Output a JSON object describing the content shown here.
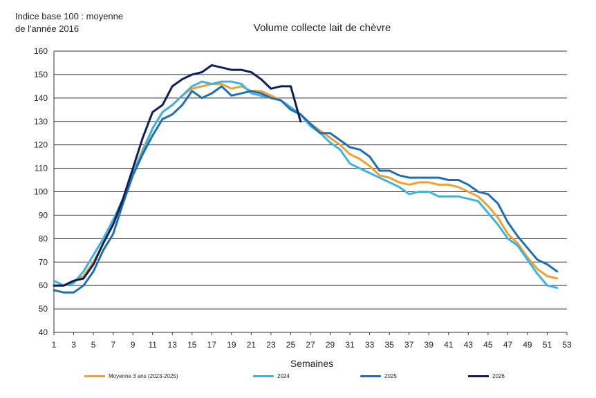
{
  "chart_data": {
    "type": "line",
    "title": "Volume collecte lait de chèvre",
    "ylabel": "Indice base 100 : moyenne\nde l'année 2016",
    "xlabel": "Semaines",
    "xlim": [
      1,
      53
    ],
    "ylim": [
      40,
      160
    ],
    "xticks": [
      1,
      3,
      5,
      7,
      9,
      11,
      13,
      15,
      17,
      19,
      21,
      23,
      25,
      27,
      29,
      31,
      33,
      35,
      37,
      39,
      41,
      43,
      45,
      47,
      49,
      51,
      53
    ],
    "yticks": [
      40,
      50,
      60,
      70,
      80,
      90,
      100,
      110,
      120,
      130,
      140,
      150,
      160
    ],
    "grid": "horizontal",
    "legend_position": "bottom",
    "series": [
      {
        "name": "Moyenne 3 ans (2023-2025)",
        "color": "#f0a030",
        "x": [
          1,
          2,
          3,
          4,
          5,
          6,
          7,
          8,
          9,
          10,
          11,
          12,
          13,
          14,
          15,
          16,
          17,
          18,
          19,
          20,
          21,
          22,
          23,
          24,
          25,
          26,
          27,
          28,
          29,
          30,
          31,
          32,
          33,
          34,
          35,
          36,
          37,
          38,
          39,
          40,
          41,
          42,
          43,
          44,
          45,
          46,
          47,
          48,
          49,
          50,
          51,
          52
        ],
        "values": [
          60,
          60,
          62,
          64,
          70,
          78,
          86,
          96,
          108,
          118,
          127,
          134,
          137,
          141,
          144,
          145,
          146,
          146,
          144,
          145,
          143,
          143,
          141,
          139,
          136,
          133,
          129,
          126,
          123,
          120,
          116,
          114,
          111,
          107,
          106,
          104,
          103,
          104,
          104,
          103,
          103,
          102,
          100,
          98,
          94,
          89,
          82,
          78,
          72,
          67,
          64,
          63
        ]
      },
      {
        "name": "2024",
        "color": "#3bb4e2",
        "x": [
          1,
          2,
          3,
          4,
          5,
          6,
          7,
          8,
          9,
          10,
          11,
          12,
          13,
          14,
          15,
          16,
          17,
          18,
          19,
          20,
          21,
          22,
          23,
          24,
          25,
          26,
          27,
          28,
          29,
          30,
          31,
          32,
          33,
          34,
          35,
          36,
          37,
          38,
          39,
          40,
          41,
          42,
          43,
          44,
          45,
          46,
          47,
          48,
          49,
          50,
          51,
          52
        ],
        "values": [
          62,
          60,
          61,
          66,
          73,
          80,
          88,
          97,
          108,
          117,
          127,
          134,
          137,
          141,
          145,
          147,
          146,
          147,
          147,
          146,
          142,
          141,
          140,
          139,
          136,
          133,
          128,
          125,
          121,
          118,
          112,
          110,
          108,
          106,
          104,
          102,
          99,
          100,
          100,
          98,
          98,
          98,
          97,
          96,
          91,
          86,
          80,
          77,
          71,
          65,
          60,
          59
        ]
      },
      {
        "name": "2025",
        "color": "#1f6fb0",
        "x": [
          1,
          2,
          3,
          4,
          5,
          6,
          7,
          8,
          9,
          10,
          11,
          12,
          13,
          14,
          15,
          16,
          17,
          18,
          19,
          20,
          21,
          22,
          23,
          24,
          25,
          26,
          27,
          28,
          29,
          30,
          31,
          32,
          33,
          34,
          35,
          36,
          37,
          38,
          39,
          40,
          41,
          42,
          43,
          44,
          45,
          46,
          47,
          48,
          49,
          50,
          51,
          52
        ],
        "values": [
          58,
          57,
          57,
          60,
          66,
          75,
          82,
          95,
          107,
          116,
          124,
          131,
          133,
          137,
          143,
          140,
          142,
          145,
          141,
          142,
          143,
          142,
          140,
          139,
          135,
          133,
          129,
          125,
          125,
          122,
          119,
          118,
          115,
          109,
          109,
          107,
          106,
          106,
          106,
          106,
          105,
          105,
          103,
          100,
          99,
          95,
          87,
          81,
          76,
          71,
          69,
          66
        ]
      },
      {
        "name": "2026",
        "color": "#0d1e5a",
        "x": [
          1,
          2,
          3,
          4,
          5,
          6,
          7,
          8,
          9,
          10,
          11,
          12,
          13,
          14,
          15,
          16,
          17,
          18,
          19,
          20,
          21,
          22,
          23,
          24,
          25,
          26
        ],
        "values": [
          60,
          60,
          62,
          63,
          69,
          78,
          86,
          97,
          110,
          123,
          134,
          137,
          145,
          148,
          150,
          151,
          154,
          153,
          152,
          152,
          151,
          148,
          144,
          145,
          145,
          130
        ]
      }
    ]
  }
}
